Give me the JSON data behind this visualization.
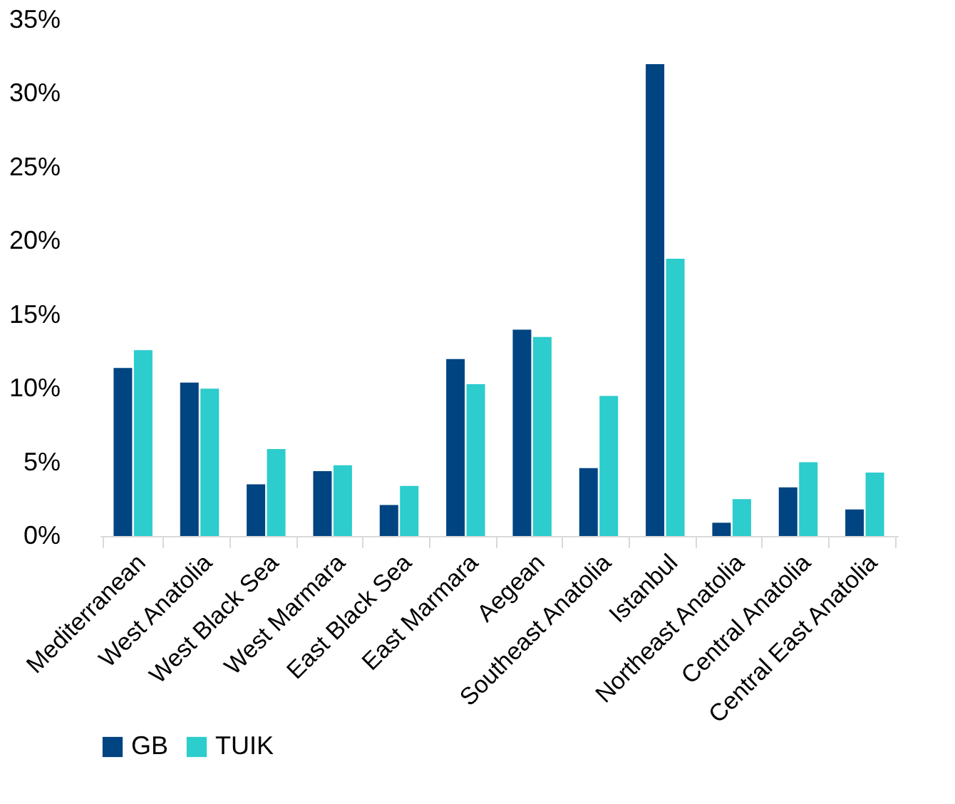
{
  "chart_data": {
    "type": "bar",
    "categories": [
      "Mediterranean",
      "West Anatolia",
      "West Black Sea",
      "West Marmara",
      "East Black Sea",
      "East Marmara",
      "Aegean",
      "Southeast Anatolia",
      "Istanbul",
      "Northeast Anatolia",
      "Central Anatolia",
      "Central East Anatolia"
    ],
    "series": [
      {
        "name": "GB",
        "color": "#004481",
        "values": [
          11.4,
          10.4,
          3.5,
          4.4,
          2.1,
          12.0,
          14.0,
          4.6,
          32.0,
          0.9,
          3.3,
          1.8
        ]
      },
      {
        "name": "TUIK",
        "color": "#2dcccd",
        "values": [
          12.6,
          10.0,
          5.9,
          4.8,
          3.4,
          10.3,
          13.5,
          9.5,
          18.8,
          2.5,
          5.0,
          4.3
        ]
      }
    ],
    "ylim": [
      0,
      35
    ],
    "yticks": [
      {
        "value": 0,
        "label": "0%"
      },
      {
        "value": 5,
        "label": "5%"
      },
      {
        "value": 10,
        "label": "10%"
      },
      {
        "value": 15,
        "label": "15%"
      },
      {
        "value": 20,
        "label": "20%"
      },
      {
        "value": 25,
        "label": "25%"
      },
      {
        "value": 30,
        "label": "30%"
      },
      {
        "value": 35,
        "label": "35%"
      }
    ],
    "grid": false,
    "legend": "bottom"
  }
}
